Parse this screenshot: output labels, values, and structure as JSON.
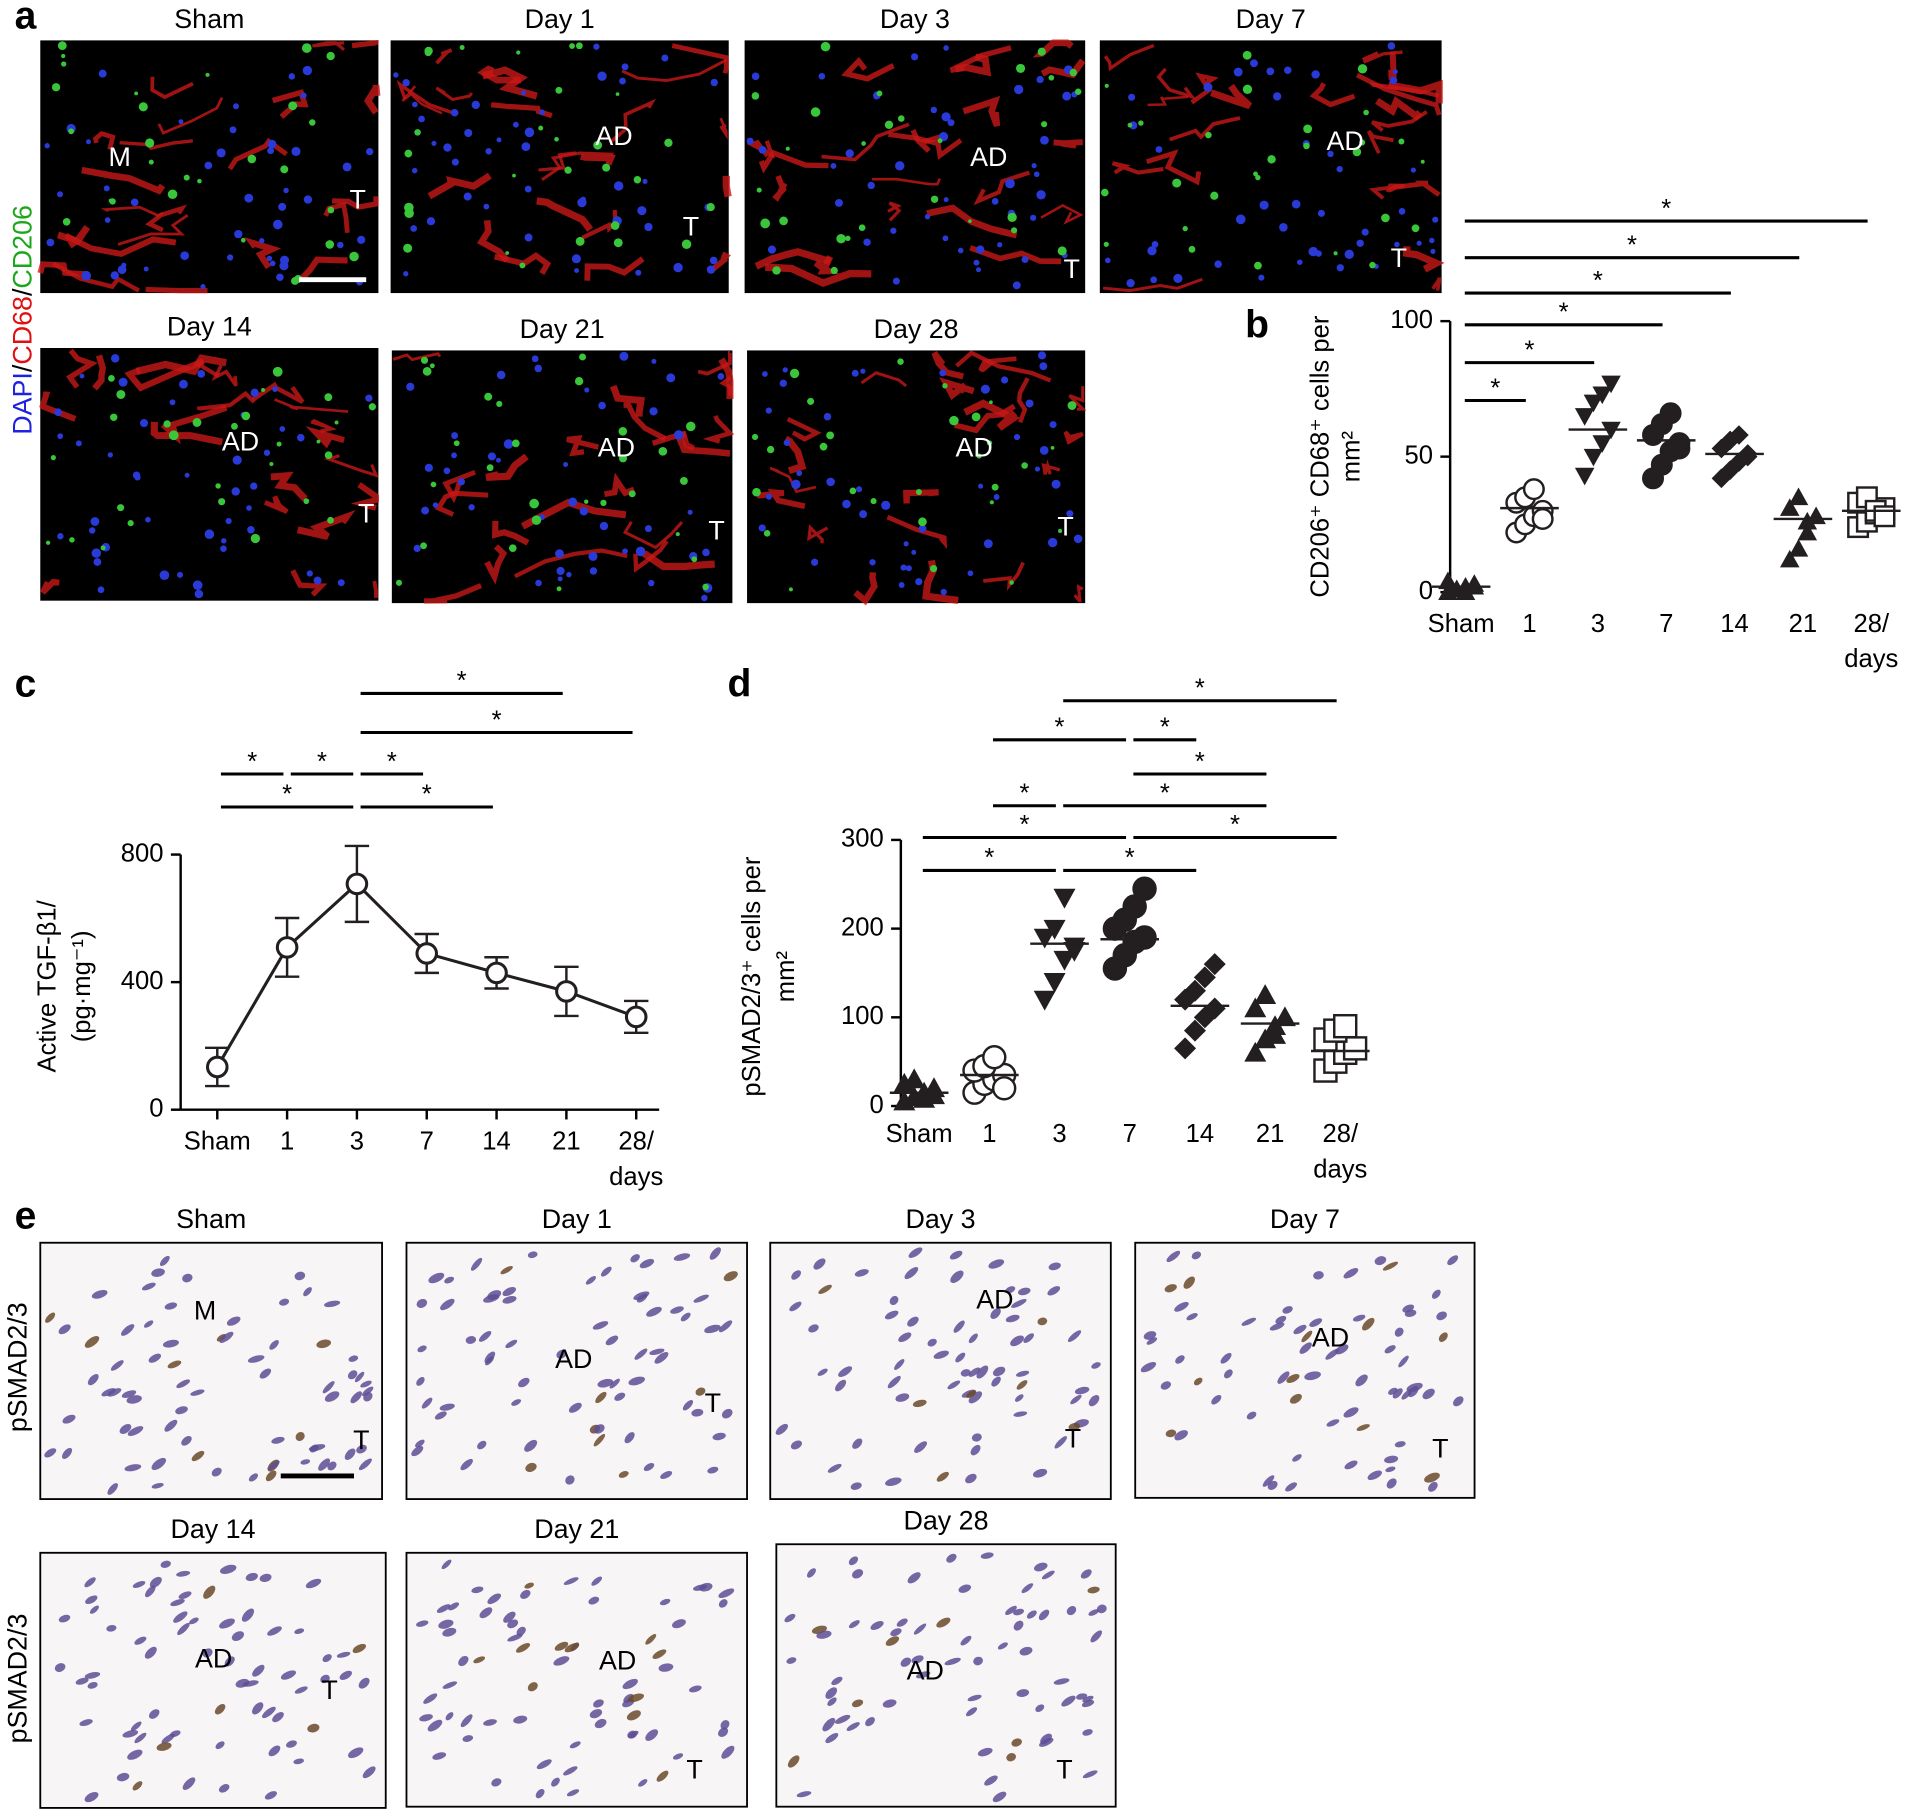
{
  "panel_letters": [
    "a",
    "b",
    "c",
    "d",
    "e"
  ],
  "figure_a": {
    "side_label": [
      "DAPI",
      "/",
      "CD68",
      "/",
      "CD206"
    ],
    "side_label_colors": [
      "#2020e0",
      "#000000",
      "#e01010",
      "#000000",
      "#1aa81a"
    ],
    "images": [
      {
        "title": "Sham",
        "labels": [
          "M",
          "T"
        ]
      },
      {
        "title": "Day 1",
        "labels": [
          "AD",
          "T"
        ]
      },
      {
        "title": "Day 3",
        "labels": [
          "AD",
          "T"
        ]
      },
      {
        "title": "Day 7",
        "labels": [
          "AD",
          "T"
        ]
      },
      {
        "title": "Day 14",
        "labels": [
          "AD",
          "T"
        ]
      },
      {
        "title": "Day 21",
        "labels": [
          "AD",
          "T"
        ]
      },
      {
        "title": "Day 28",
        "labels": [
          "AD",
          "T"
        ]
      }
    ]
  },
  "figure_e": {
    "side_label": "pSMAD2/3",
    "images": [
      {
        "title": "Sham",
        "labels": [
          "M",
          "T"
        ]
      },
      {
        "title": "Day 1",
        "labels": [
          "AD",
          "T"
        ]
      },
      {
        "title": "Day 3",
        "labels": [
          "AD",
          "T"
        ]
      },
      {
        "title": "Day 7",
        "labels": [
          "AD",
          "T"
        ]
      },
      {
        "title": "Day 14",
        "labels": [
          "AD",
          "T"
        ]
      },
      {
        "title": "Day 21",
        "labels": [
          "AD",
          "T"
        ]
      },
      {
        "title": "Day 28",
        "labels": [
          "AD",
          "T"
        ]
      }
    ]
  },
  "chart_data": [
    {
      "type": "dot",
      "ylabel": [
        "CD206⁺ CD68⁺ cells per",
        "mm²"
      ],
      "categories": [
        "Sham",
        "1",
        "3",
        "7",
        "14",
        "21",
        "28/"
      ],
      "xlabel": "days",
      "ylim": [
        0,
        100
      ],
      "yticks": [
        0,
        50,
        100
      ],
      "x_axis_line": false,
      "markers": [
        "triangle",
        "circle-open",
        "triangle-down",
        "circle",
        "diamond",
        "triangle",
        "square-open"
      ],
      "color": "#231f20",
      "means": [
        2,
        31,
        60,
        56,
        51,
        27,
        30
      ],
      "points": [
        [
          0,
          1,
          2,
          3,
          4,
          1,
          0,
          2
        ],
        [
          22,
          25,
          28,
          30,
          33,
          35,
          38,
          27
        ],
        [
          43,
          50,
          55,
          60,
          65,
          70,
          73,
          77
        ],
        [
          42,
          47,
          52,
          55,
          58,
          62,
          66,
          53
        ],
        [
          42,
          45,
          48,
          51,
          53,
          56,
          58,
          50
        ],
        [
          12,
          16,
          22,
          28,
          31,
          35,
          26
        ],
        [
          24,
          26,
          29,
          31,
          33,
          35,
          30,
          28
        ]
      ],
      "comparisons": [
        {
          "pair": [
            "Sham",
            "1"
          ],
          "label": "*"
        },
        {
          "pair": [
            "Sham",
            "3"
          ],
          "label": "*"
        },
        {
          "pair": [
            "Sham",
            "7"
          ],
          "label": "*"
        },
        {
          "pair": [
            "Sham",
            "14"
          ],
          "label": "*"
        },
        {
          "pair": [
            "Sham",
            "21"
          ],
          "label": "*"
        },
        {
          "pair": [
            "Sham",
            "28/"
          ],
          "label": "*"
        }
      ]
    },
    {
      "type": "line",
      "ylabel": [
        "Active TGF-β1/",
        "(pg·mg⁻¹)"
      ],
      "categories": [
        "Sham",
        "1",
        "3",
        "7",
        "14",
        "21",
        "28/"
      ],
      "xlabel": "days",
      "ylim": [
        0,
        800
      ],
      "yticks": [
        0,
        400,
        800
      ],
      "x_axis_line": true,
      "color": "#231f20",
      "values": [
        134,
        509,
        708,
        490,
        429,
        371,
        291
      ],
      "errors": [
        60,
        92,
        119,
        61,
        49,
        77,
        50
      ],
      "comparisons": [
        {
          "pair": [
            "Sham",
            "1"
          ],
          "label": "*"
        },
        {
          "pair": [
            "1",
            "3"
          ],
          "label": "*"
        },
        {
          "pair": [
            "3",
            "7"
          ],
          "label": "*"
        },
        {
          "pair": [
            "Sham",
            "3"
          ],
          "label": "*"
        },
        {
          "pair": [
            "3",
            "14"
          ],
          "label": "*"
        },
        {
          "pair": [
            "3",
            "28/"
          ],
          "label": "*"
        },
        {
          "pair": [
            "3",
            "21"
          ],
          "label": "*"
        }
      ]
    },
    {
      "type": "dot",
      "ylabel": [
        "pSMAD2/3⁺ cells per",
        "mm²"
      ],
      "categories": [
        "Sham",
        "1",
        "3",
        "7",
        "14",
        "21",
        "28/"
      ],
      "xlabel": "days",
      "ylim": [
        0,
        300
      ],
      "yticks": [
        0,
        100,
        200,
        300
      ],
      "x_axis_line": false,
      "markers": [
        "triangle",
        "circle-open",
        "triangle-down",
        "circle",
        "diamond",
        "triangle",
        "square-open"
      ],
      "color": "#231f20",
      "means": [
        15,
        35,
        183,
        188,
        113,
        93,
        62
      ],
      "points": [
        [
          5,
          10,
          15,
          20,
          25,
          30,
          8,
          12
        ],
        [
          15,
          25,
          30,
          35,
          40,
          45,
          55,
          20
        ],
        [
          120,
          140,
          165,
          180,
          190,
          200,
          235,
          175
        ],
        [
          155,
          170,
          185,
          190,
          200,
          210,
          225,
          245
        ],
        [
          65,
          85,
          100,
          110,
          120,
          130,
          145,
          160
        ],
        [
          60,
          75,
          90,
          100,
          110,
          125,
          80
        ],
        [
          40,
          50,
          60,
          65,
          75,
          85,
          90
        ]
      ],
      "comparisons": [
        {
          "pair": [
            "Sham",
            "3"
          ],
          "label": "*"
        },
        {
          "pair": [
            "3",
            "14"
          ],
          "label": "*"
        },
        {
          "pair": [
            "Sham",
            "7"
          ],
          "label": "*"
        },
        {
          "pair": [
            "7",
            "28/"
          ],
          "label": "*"
        },
        {
          "pair": [
            "1",
            "3"
          ],
          "label": "*"
        },
        {
          "pair": [
            "3",
            "21"
          ],
          "label": "*"
        },
        {
          "pair": [
            "7",
            "21"
          ],
          "label": "*"
        },
        {
          "pair": [
            "1",
            "7"
          ],
          "label": "*"
        },
        {
          "pair": [
            "7",
            "14"
          ],
          "label": "*"
        },
        {
          "pair": [
            "3",
            "28/"
          ],
          "label": "*"
        }
      ]
    }
  ]
}
